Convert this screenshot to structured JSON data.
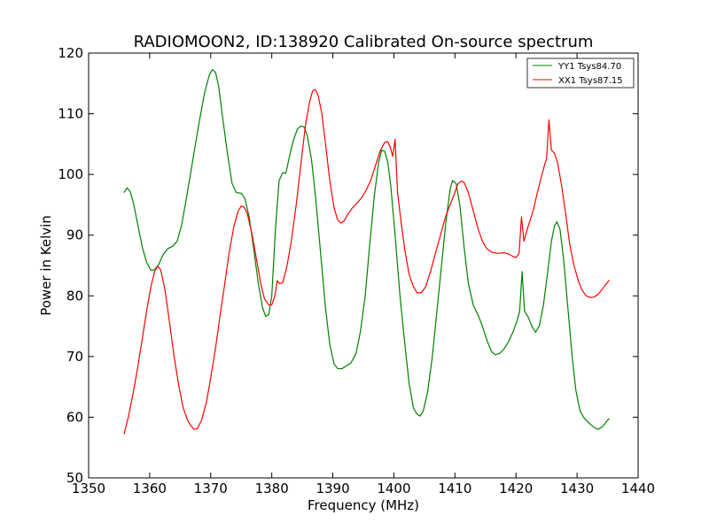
{
  "chart_data": {
    "type": "line",
    "title": "RADIOMOON2, ID:138920 Calibrated On-source spectrum",
    "xlabel": "Frequency (MHz)",
    "ylabel": "Power in Kelvin",
    "xlim": [
      1350,
      1440
    ],
    "ylim": [
      50,
      120
    ],
    "xticks": [
      1350,
      1360,
      1370,
      1380,
      1390,
      1400,
      1410,
      1420,
      1430,
      1440
    ],
    "yticks": [
      50,
      60,
      70,
      80,
      90,
      100,
      110,
      120
    ],
    "grid": false,
    "legend_position": "top-right",
    "series": [
      {
        "name": "YY1 Tsys84.70",
        "color": "#008000",
        "points": [
          [
            1355.8,
            97.0
          ],
          [
            1356.3,
            97.8
          ],
          [
            1356.8,
            97.2
          ],
          [
            1357.3,
            95.5
          ],
          [
            1358.0,
            92.0
          ],
          [
            1358.8,
            88.0
          ],
          [
            1359.5,
            85.5
          ],
          [
            1360.2,
            84.2
          ],
          [
            1360.8,
            84.3
          ],
          [
            1361.5,
            85.2
          ],
          [
            1362.2,
            86.8
          ],
          [
            1363.0,
            87.8
          ],
          [
            1363.8,
            88.2
          ],
          [
            1364.5,
            89.0
          ],
          [
            1365.2,
            91.5
          ],
          [
            1366.0,
            96.0
          ],
          [
            1367.0,
            102.0
          ],
          [
            1368.0,
            108.0
          ],
          [
            1369.0,
            113.5
          ],
          [
            1369.8,
            116.5
          ],
          [
            1370.3,
            117.3
          ],
          [
            1370.8,
            116.8
          ],
          [
            1371.3,
            114.5
          ],
          [
            1372.0,
            109.0
          ],
          [
            1372.8,
            103.0
          ],
          [
            1373.5,
            98.5
          ],
          [
            1374.2,
            97.0
          ],
          [
            1375.0,
            96.9
          ],
          [
            1375.6,
            96.0
          ],
          [
            1376.3,
            93.0
          ],
          [
            1377.0,
            88.0
          ],
          [
            1377.8,
            82.0
          ],
          [
            1378.5,
            78.0
          ],
          [
            1379.0,
            76.6
          ],
          [
            1379.5,
            76.9
          ],
          [
            1380.0,
            80.0
          ],
          [
            1380.6,
            91.0
          ],
          [
            1381.2,
            99.0
          ],
          [
            1381.8,
            100.3
          ],
          [
            1382.3,
            100.2
          ],
          [
            1382.8,
            102.5
          ],
          [
            1383.5,
            105.5
          ],
          [
            1384.2,
            107.5
          ],
          [
            1384.8,
            108.0
          ],
          [
            1385.3,
            107.8
          ],
          [
            1385.8,
            106.5
          ],
          [
            1386.5,
            102.5
          ],
          [
            1387.2,
            96.0
          ],
          [
            1388.0,
            87.0
          ],
          [
            1388.8,
            78.0
          ],
          [
            1389.5,
            72.0
          ],
          [
            1390.2,
            68.8
          ],
          [
            1390.8,
            68.0
          ],
          [
            1391.5,
            68.0
          ],
          [
            1392.3,
            68.5
          ],
          [
            1393.0,
            69.0
          ],
          [
            1393.8,
            70.5
          ],
          [
            1394.5,
            74.0
          ],
          [
            1395.3,
            80.0
          ],
          [
            1396.0,
            88.0
          ],
          [
            1396.8,
            96.5
          ],
          [
            1397.5,
            102.0
          ],
          [
            1398.0,
            104.0
          ],
          [
            1398.5,
            103.8
          ],
          [
            1399.0,
            102.0
          ],
          [
            1399.5,
            98.0
          ],
          [
            1400.2,
            90.0
          ],
          [
            1401.0,
            80.0
          ],
          [
            1401.8,
            72.0
          ],
          [
            1402.5,
            65.5
          ],
          [
            1403.2,
            61.5
          ],
          [
            1403.8,
            60.5
          ],
          [
            1404.3,
            60.2
          ],
          [
            1404.8,
            61.0
          ],
          [
            1405.5,
            64.0
          ],
          [
            1406.3,
            70.0
          ],
          [
            1407.0,
            77.0
          ],
          [
            1407.8,
            85.0
          ],
          [
            1408.5,
            92.0
          ],
          [
            1409.2,
            97.5
          ],
          [
            1409.6,
            99.0
          ],
          [
            1410.2,
            98.5
          ],
          [
            1410.8,
            95.0
          ],
          [
            1411.5,
            88.0
          ],
          [
            1412.2,
            82.0
          ],
          [
            1413.0,
            78.5
          ],
          [
            1413.8,
            76.8
          ],
          [
            1414.5,
            75.0
          ],
          [
            1415.3,
            72.5
          ],
          [
            1416.0,
            70.8
          ],
          [
            1416.6,
            70.3
          ],
          [
            1417.3,
            70.5
          ],
          [
            1418.0,
            71.2
          ],
          [
            1418.8,
            72.5
          ],
          [
            1419.5,
            74.0
          ],
          [
            1420.2,
            76.0
          ],
          [
            1420.6,
            77.5
          ],
          [
            1421.0,
            84.0
          ],
          [
            1421.4,
            77.5
          ],
          [
            1422.0,
            76.5
          ],
          [
            1422.6,
            75.0
          ],
          [
            1423.2,
            74.0
          ],
          [
            1423.8,
            75.0
          ],
          [
            1424.5,
            78.5
          ],
          [
            1425.2,
            84.0
          ],
          [
            1425.8,
            89.0
          ],
          [
            1426.3,
            91.5
          ],
          [
            1426.7,
            92.2
          ],
          [
            1427.2,
            91.0
          ],
          [
            1427.8,
            86.0
          ],
          [
            1428.5,
            78.0
          ],
          [
            1429.2,
            70.0
          ],
          [
            1429.8,
            64.5
          ],
          [
            1430.5,
            61.0
          ],
          [
            1431.2,
            59.8
          ],
          [
            1432.0,
            59.0
          ],
          [
            1432.8,
            58.3
          ],
          [
            1433.5,
            58.0
          ],
          [
            1434.2,
            58.5
          ],
          [
            1435.0,
            59.5
          ],
          [
            1435.3,
            59.8
          ]
        ]
      },
      {
        "name": "XX1 Tsys87.15",
        "color": "#ff0000",
        "points": [
          [
            1355.8,
            57.2
          ],
          [
            1356.5,
            60.0
          ],
          [
            1357.3,
            64.0
          ],
          [
            1358.0,
            68.0
          ],
          [
            1358.8,
            73.0
          ],
          [
            1359.5,
            77.5
          ],
          [
            1360.2,
            81.5
          ],
          [
            1360.8,
            84.0
          ],
          [
            1361.3,
            84.9
          ],
          [
            1361.8,
            84.3
          ],
          [
            1362.5,
            81.0
          ],
          [
            1363.2,
            76.0
          ],
          [
            1364.0,
            70.0
          ],
          [
            1364.8,
            65.0
          ],
          [
            1365.5,
            61.5
          ],
          [
            1366.2,
            59.5
          ],
          [
            1366.8,
            58.5
          ],
          [
            1367.3,
            58.0
          ],
          [
            1367.8,
            58.1
          ],
          [
            1368.5,
            59.5
          ],
          [
            1369.3,
            62.5
          ],
          [
            1370.0,
            66.5
          ],
          [
            1370.8,
            71.5
          ],
          [
            1371.5,
            76.5
          ],
          [
            1372.3,
            82.0
          ],
          [
            1373.0,
            87.0
          ],
          [
            1373.8,
            91.5
          ],
          [
            1374.5,
            94.0
          ],
          [
            1375.0,
            94.8
          ],
          [
            1375.5,
            94.6
          ],
          [
            1376.0,
            93.5
          ],
          [
            1376.8,
            90.0
          ],
          [
            1377.5,
            86.0
          ],
          [
            1378.2,
            82.0
          ],
          [
            1378.8,
            79.5
          ],
          [
            1379.5,
            78.5
          ],
          [
            1380.0,
            78.5
          ],
          [
            1380.5,
            80.0
          ],
          [
            1380.9,
            82.5
          ],
          [
            1381.3,
            82.0
          ],
          [
            1381.8,
            82.2
          ],
          [
            1382.5,
            85.0
          ],
          [
            1383.2,
            89.0
          ],
          [
            1384.0,
            95.0
          ],
          [
            1384.8,
            102.0
          ],
          [
            1385.5,
            108.0
          ],
          [
            1386.2,
            112.0
          ],
          [
            1386.7,
            113.8
          ],
          [
            1387.1,
            114.0
          ],
          [
            1387.6,
            113.0
          ],
          [
            1388.2,
            110.0
          ],
          [
            1388.8,
            105.0
          ],
          [
            1389.5,
            99.0
          ],
          [
            1390.2,
            94.5
          ],
          [
            1390.8,
            92.5
          ],
          [
            1391.3,
            92.0
          ],
          [
            1391.8,
            92.3
          ],
          [
            1392.5,
            93.5
          ],
          [
            1393.2,
            94.5
          ],
          [
            1394.0,
            95.3
          ],
          [
            1394.8,
            96.3
          ],
          [
            1395.5,
            97.5
          ],
          [
            1396.2,
            99.0
          ],
          [
            1397.0,
            101.5
          ],
          [
            1397.8,
            104.0
          ],
          [
            1398.5,
            105.3
          ],
          [
            1399.0,
            105.4
          ],
          [
            1399.4,
            104.5
          ],
          [
            1399.8,
            103.0
          ],
          [
            1400.2,
            105.8
          ],
          [
            1400.6,
            97.0
          ],
          [
            1401.2,
            92.0
          ],
          [
            1401.8,
            87.5
          ],
          [
            1402.5,
            83.5
          ],
          [
            1403.2,
            81.5
          ],
          [
            1403.8,
            80.5
          ],
          [
            1404.5,
            80.5
          ],
          [
            1405.2,
            81.5
          ],
          [
            1406.0,
            84.0
          ],
          [
            1406.8,
            87.0
          ],
          [
            1407.5,
            89.5
          ],
          [
            1408.3,
            92.5
          ],
          [
            1409.0,
            94.5
          ],
          [
            1409.8,
            96.5
          ],
          [
            1410.5,
            98.5
          ],
          [
            1411.0,
            98.9
          ],
          [
            1411.5,
            98.7
          ],
          [
            1412.2,
            97.0
          ],
          [
            1413.0,
            94.0
          ],
          [
            1413.8,
            91.0
          ],
          [
            1414.5,
            89.0
          ],
          [
            1415.2,
            87.8
          ],
          [
            1416.0,
            87.2
          ],
          [
            1417.0,
            87.0
          ],
          [
            1418.0,
            87.1
          ],
          [
            1418.8,
            86.9
          ],
          [
            1419.5,
            86.5
          ],
          [
            1420.0,
            86.3
          ],
          [
            1420.5,
            87.0
          ],
          [
            1420.9,
            93.0
          ],
          [
            1421.3,
            89.0
          ],
          [
            1422.0,
            91.5
          ],
          [
            1422.8,
            94.0
          ],
          [
            1423.5,
            97.0
          ],
          [
            1424.2,
            99.8
          ],
          [
            1424.8,
            102.0
          ],
          [
            1425.0,
            102.5
          ],
          [
            1425.4,
            109.0
          ],
          [
            1425.8,
            104.0
          ],
          [
            1426.3,
            103.5
          ],
          [
            1426.8,
            102.0
          ],
          [
            1427.5,
            98.0
          ],
          [
            1428.2,
            93.0
          ],
          [
            1428.8,
            88.5
          ],
          [
            1429.5,
            85.0
          ],
          [
            1430.2,
            82.5
          ],
          [
            1430.8,
            81.0
          ],
          [
            1431.5,
            80.0
          ],
          [
            1432.2,
            79.7
          ],
          [
            1432.8,
            79.8
          ],
          [
            1433.5,
            80.3
          ],
          [
            1434.2,
            81.2
          ],
          [
            1434.8,
            82.0
          ],
          [
            1435.3,
            82.6
          ]
        ]
      }
    ]
  }
}
